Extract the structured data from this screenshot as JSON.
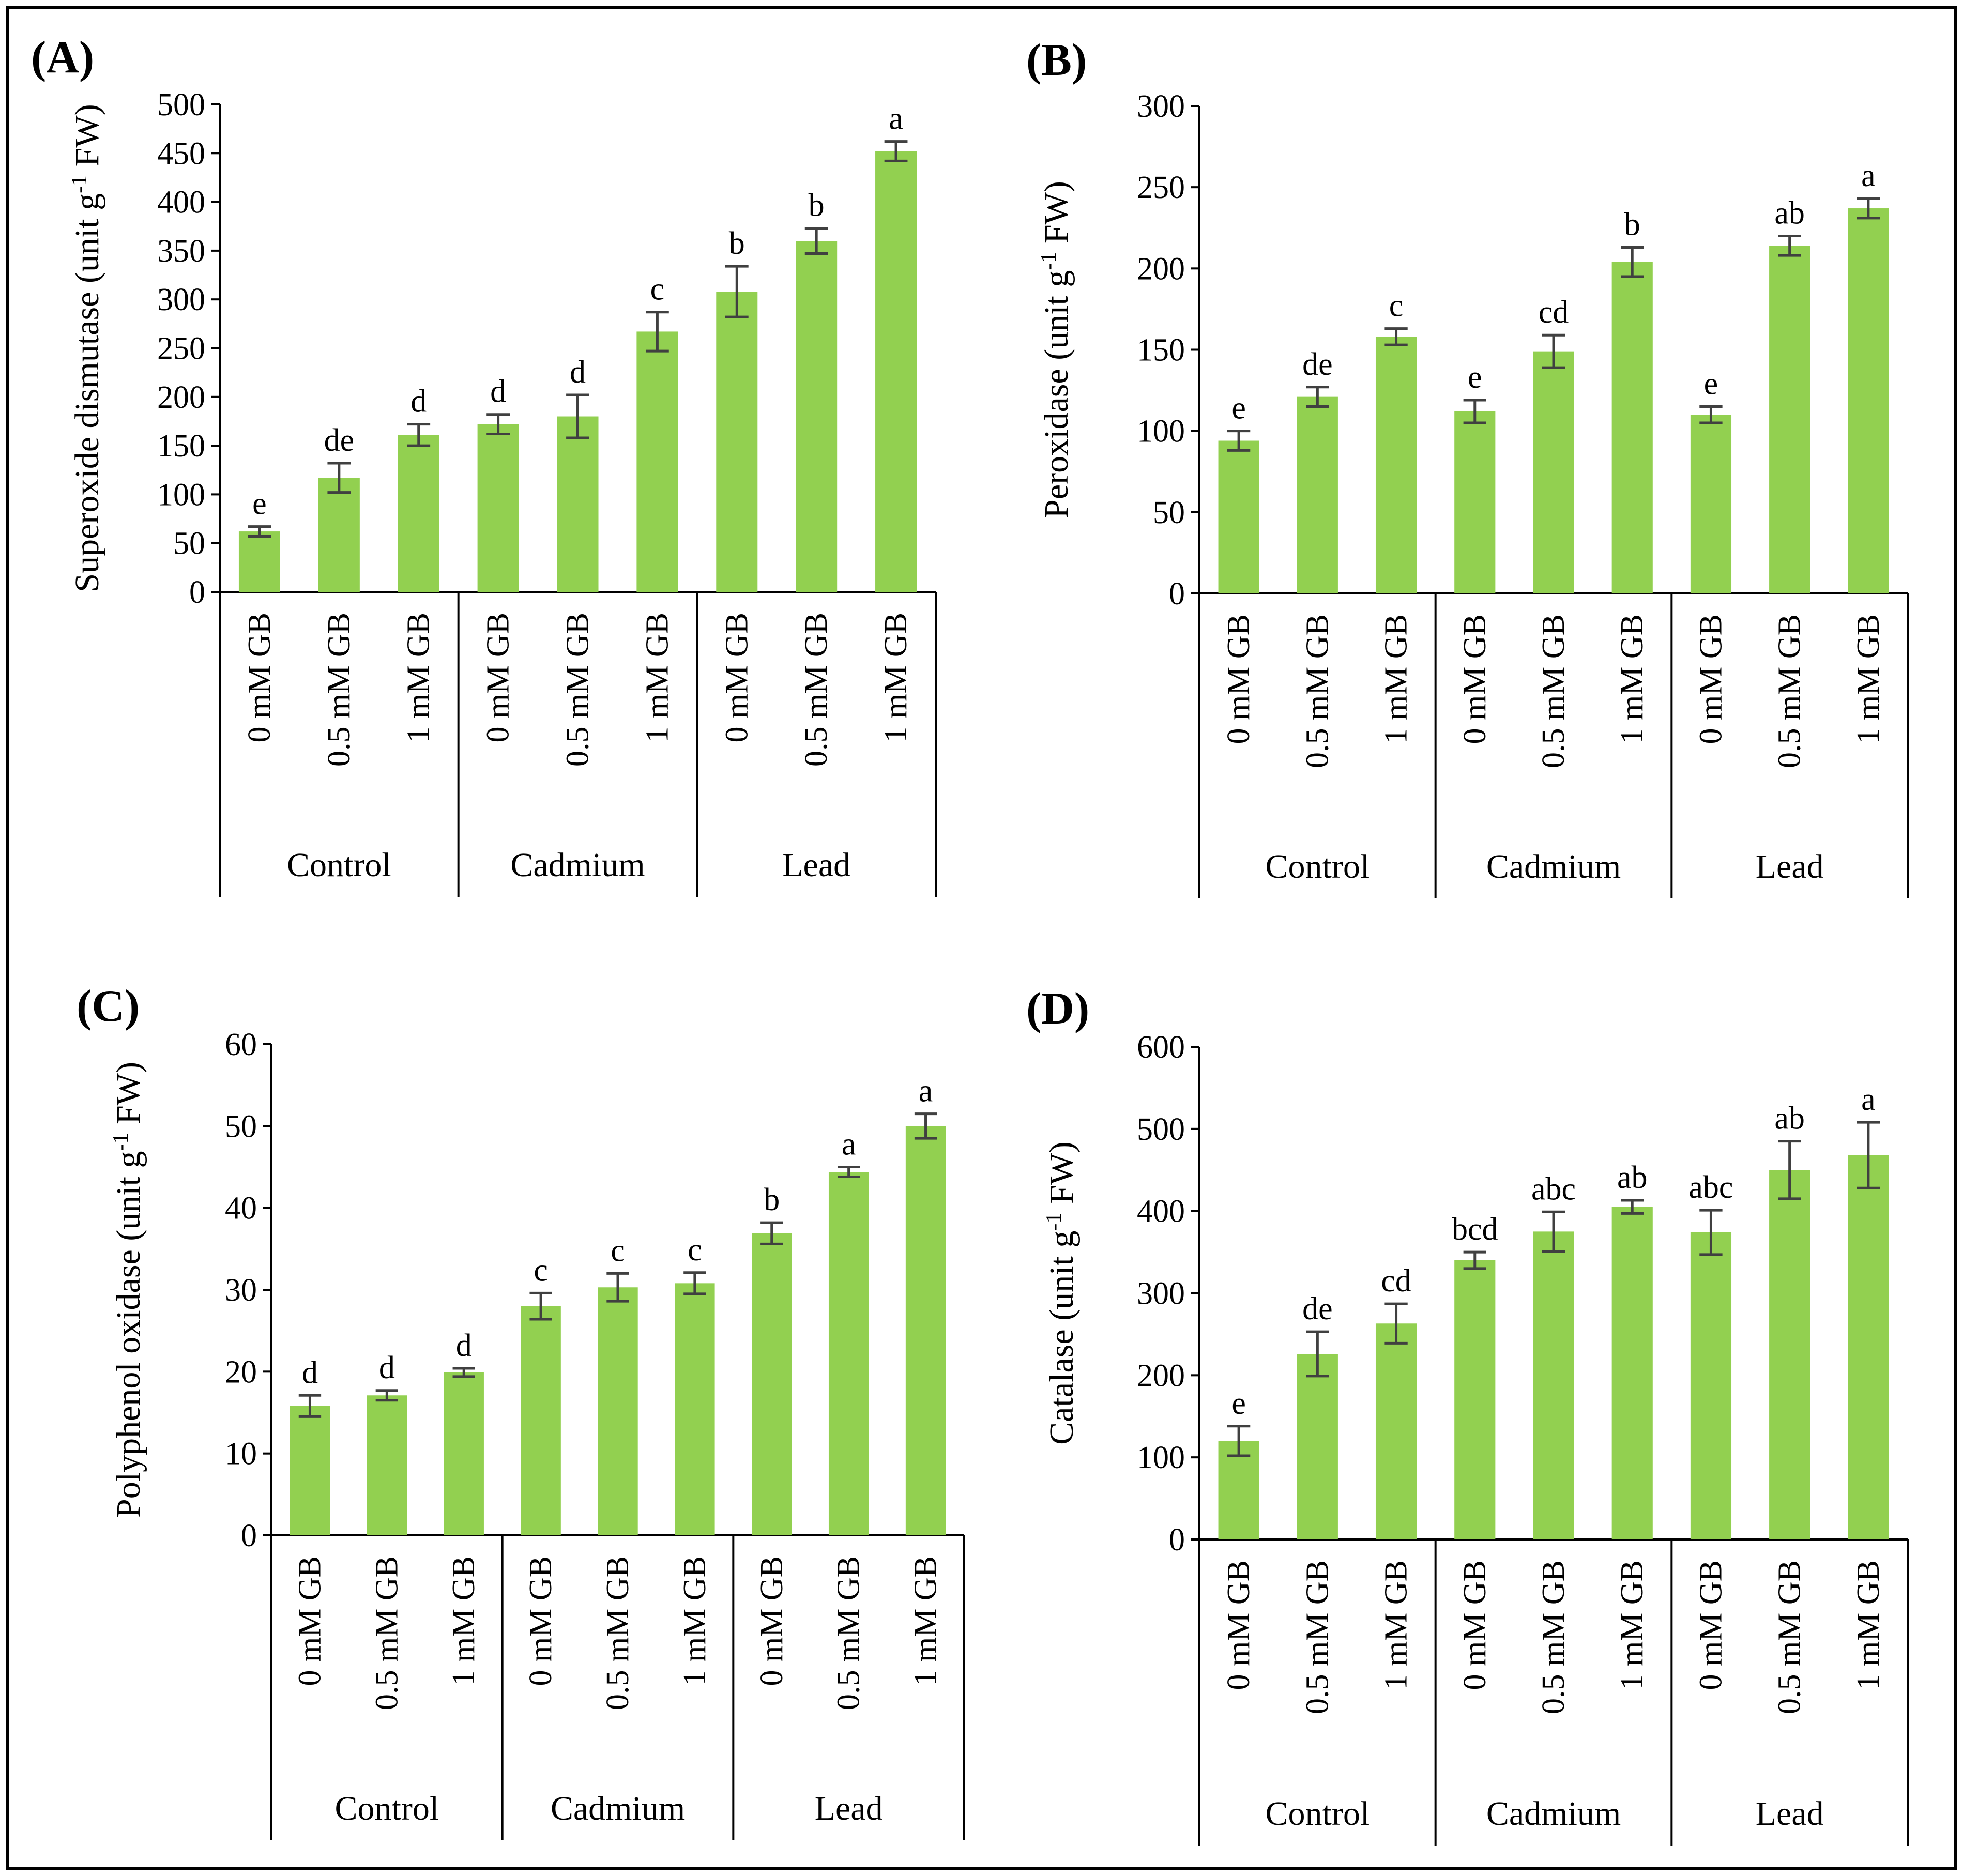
{
  "chart_data": [
    {
      "type": "bar",
      "panel_label": "(A)",
      "ylabel": "Superoxide dismutase (unit g-1 FW)",
      "ylabel_parts": [
        "Superoxide dismutase (unit g",
        "-1",
        " FW)"
      ],
      "ylim": [
        0,
        500
      ],
      "yticks": [
        0,
        50,
        100,
        150,
        200,
        250,
        300,
        350,
        400,
        450,
        500
      ],
      "groups": [
        "Control",
        "Cadmium",
        "Lead"
      ],
      "categories": [
        "0 mM GB",
        "0.5 mM GB",
        "1 mM GB",
        "0 mM GB",
        "0.5 mM GB",
        "1 mM GB",
        "0 mM GB",
        "0.5 mM GB",
        "1 mM GB"
      ],
      "values": [
        62,
        117,
        161,
        172,
        180,
        267,
        308,
        360,
        452
      ],
      "errors": [
        5,
        15,
        11,
        10,
        22,
        20,
        26,
        13,
        10
      ],
      "letters": [
        "e",
        "de",
        "d",
        "d",
        "d",
        "c",
        "b",
        "b",
        "a"
      ]
    },
    {
      "type": "bar",
      "panel_label": "(B)",
      "ylabel": "Peroxidase (unit g-1 FW)",
      "ylabel_parts": [
        "Peroxidase (unit g",
        "-1",
        " FW)"
      ],
      "ylim": [
        0,
        300
      ],
      "yticks": [
        0,
        50,
        100,
        150,
        200,
        250,
        300
      ],
      "groups": [
        "Control",
        "Cadmium",
        "Lead"
      ],
      "categories": [
        "0 mM GB",
        "0.5 mM GB",
        "1 mM GB",
        "0 mM GB",
        "0.5 mM GB",
        "1 mM GB",
        "0 mM GB",
        "0.5 mM GB",
        "1 mM GB"
      ],
      "values": [
        94,
        121,
        158,
        112,
        149,
        204,
        110,
        214,
        237
      ],
      "errors": [
        6,
        6,
        5,
        7,
        10,
        9,
        5,
        6,
        6
      ],
      "letters": [
        "e",
        "de",
        "c",
        "e",
        "cd",
        "b",
        "e",
        "ab",
        "a"
      ]
    },
    {
      "type": "bar",
      "panel_label": "(C)",
      "ylabel": "Polyphenol oxidase (unit g-1 FW)",
      "ylabel_parts": [
        "Polyphenol oxidase (unit g",
        "-1",
        " FW)"
      ],
      "ylim": [
        0,
        60
      ],
      "yticks": [
        0,
        10,
        20,
        30,
        40,
        50,
        60
      ],
      "groups": [
        "Control",
        "Cadmium",
        "Lead"
      ],
      "categories": [
        "0 mM GB",
        "0.5 mM GB",
        "1 mM GB",
        "0 mM GB",
        "0.5 mM GB",
        "1 mM GB",
        "0 mM GB",
        "0.5 mM GB",
        "1 mM GB"
      ],
      "values": [
        15.8,
        17.1,
        19.9,
        28.0,
        30.3,
        30.8,
        36.9,
        44.4,
        50.0
      ],
      "errors": [
        1.3,
        0.6,
        0.5,
        1.6,
        1.7,
        1.3,
        1.3,
        0.6,
        1.5
      ],
      "letters": [
        "d",
        "d",
        "d",
        "c",
        "c",
        "c",
        "b",
        "a",
        "a"
      ]
    },
    {
      "type": "bar",
      "panel_label": "(D)",
      "ylabel": "Catalase (unit g-1 FW)",
      "ylabel_parts": [
        "Catalase (unit g",
        "-1",
        " FW)"
      ],
      "ylim": [
        0,
        600
      ],
      "yticks": [
        0,
        100,
        200,
        300,
        400,
        500,
        600
      ],
      "groups": [
        "Control",
        "Cadmium",
        "Lead"
      ],
      "categories": [
        "0 mM GB",
        "0.5 mM GB",
        "1 mM GB",
        "0 mM GB",
        "0.5 mM GB",
        "1 mM GB",
        "0 mM GB",
        "0.5 mM GB",
        "1 mM GB"
      ],
      "values": [
        120,
        226,
        263,
        340,
        375,
        405,
        374,
        450,
        468
      ],
      "errors": [
        18,
        27,
        24,
        10,
        24,
        8,
        27,
        35,
        40
      ],
      "letters": [
        "e",
        "de",
        "cd",
        "bcd",
        "abc",
        "ab",
        "abc",
        "ab",
        "a"
      ]
    }
  ],
  "colors": {
    "bar": "#92d050",
    "error_bar": "#404040",
    "axis": "#000000",
    "frame": "#000000"
  }
}
